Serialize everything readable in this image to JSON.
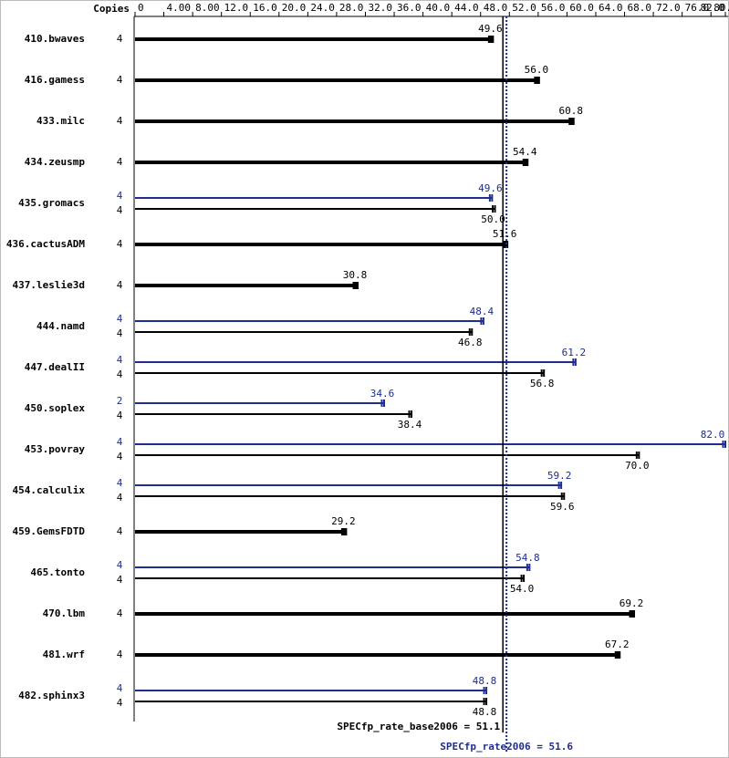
{
  "chart_data": {
    "type": "bar",
    "x_label": "Copies",
    "categories": [
      "410.bwaves",
      "416.gamess",
      "433.milc",
      "434.zeusmp",
      "435.gromacs",
      "436.cactusADM",
      "437.leslie3d",
      "444.namd",
      "447.dealII",
      "450.soplex",
      "453.povray",
      "454.calculix",
      "459.GemsFDTD",
      "465.tonto",
      "470.lbm",
      "481.wrf",
      "482.sphinx3"
    ],
    "series": [
      {
        "color": "#000000",
        "copies": [
          4,
          4,
          4,
          4,
          4,
          4,
          4,
          4,
          4,
          4,
          4,
          4,
          4,
          4,
          4,
          4,
          4
        ],
        "values": [
          49.6,
          56.0,
          60.8,
          54.4,
          50.0,
          51.6,
          30.8,
          46.8,
          56.8,
          38.4,
          70.0,
          59.6,
          29.2,
          54.0,
          69.2,
          67.2,
          48.8
        ],
        "value_labels": [
          "49.6",
          "56.0",
          "60.8",
          "54.4",
          "50.0",
          "51.6",
          "30.8",
          "46.8",
          "56.8",
          "38.4",
          "70.0",
          "59.6",
          "29.2",
          "54.0",
          "69.2",
          "67.2",
          "48.8"
        ]
      },
      {
        "color": "#1e2d8f",
        "copies": [
          null,
          null,
          null,
          null,
          4,
          null,
          null,
          4,
          4,
          2,
          4,
          4,
          null,
          4,
          null,
          null,
          4
        ],
        "values": [
          null,
          null,
          null,
          null,
          49.6,
          null,
          null,
          48.4,
          61.2,
          34.6,
          82.0,
          59.2,
          null,
          54.8,
          null,
          null,
          48.8
        ],
        "value_labels": [
          null,
          null,
          null,
          null,
          "49.6",
          null,
          null,
          "48.4",
          "61.2",
          "34.6",
          "82.0",
          "59.2",
          null,
          "54.8",
          null,
          null,
          "48.8"
        ]
      }
    ],
    "xlim": [
      0,
      82
    ],
    "xticks": [
      0,
      {
        "value": 4,
        "label": "4.00"
      },
      {
        "value": 8,
        "label": "8.00"
      },
      {
        "value": 12,
        "label": "12.0"
      },
      {
        "value": 16,
        "label": "16.0"
      },
      {
        "value": 20,
        "label": "20.0"
      },
      {
        "value": 24,
        "label": "24.0"
      },
      {
        "value": 28,
        "label": "28.0"
      },
      {
        "value": 32,
        "label": "32.0"
      },
      {
        "value": 36,
        "label": "36.0"
      },
      {
        "value": 40,
        "label": "40.0"
      },
      {
        "value": 44,
        "label": "44.0"
      },
      {
        "value": 48,
        "label": "48.0"
      },
      {
        "value": 52,
        "label": "52.0"
      },
      {
        "value": 56,
        "label": "56.0"
      },
      {
        "value": 60,
        "label": "60.0"
      },
      {
        "value": 64,
        "label": "64.0"
      },
      {
        "value": 68,
        "label": "68.0"
      },
      {
        "value": 72,
        "label": "72.0"
      },
      {
        "value": 76,
        "label": "76.0"
      },
      {
        "value": 80,
        "label": "80.0"
      },
      {
        "value": 82,
        "label": "82.0"
      }
    ],
    "reference_lines": [
      {
        "value": 51.1,
        "label": "SPECfp_rate_base2006 = 51.1",
        "color": "#000000",
        "style": "solid"
      },
      {
        "value": 51.6,
        "label": "SPECfp_rate2006 = 51.6",
        "color": "#1e2d8f",
        "style": "dotted"
      }
    ]
  }
}
